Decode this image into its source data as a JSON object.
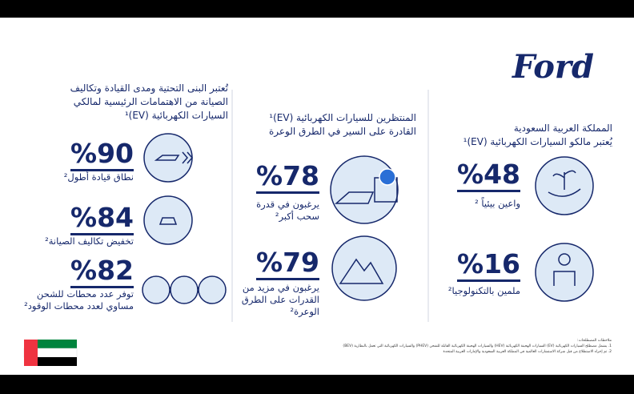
{
  "header": {
    "logo": "Ford"
  },
  "columns": [
    {
      "title": [
        "المملكة العربية السعودية",
        "يُعتبر مالكو السيارات الكهربائية (EV)¹"
      ],
      "stats": [
        {
          "value": "%48",
          "label": [
            "واعين بيئياً ²"
          ]
        },
        {
          "value": "%16",
          "label": [
            "ملمين بالتكنولوجيا²"
          ]
        }
      ]
    },
    {
      "title": [
        "المنتظرين للسيارات الكهربائية (EV)¹",
        "القادرة على السير في الطرق الوعرة"
      ],
      "stats": [
        {
          "value": "%78",
          "label": [
            "يرغبون في قدرة",
            "سحب أكبر²"
          ]
        },
        {
          "value": "%79",
          "label": [
            "يرغبون في مزيد من",
            "القدرات على الطرق",
            "الوعرة²"
          ]
        }
      ]
    },
    {
      "title": [
        "تُعتبر البنى التحتية ومدى القيادة وتكاليف",
        "الصيانة من الاهتمامات الرئيسية لمالكي",
        "السيارات الكهربائية (EV)¹"
      ],
      "stats": [
        {
          "value": "%90",
          "label": [
            "نطاق قيادة أطول²"
          ]
        },
        {
          "value": "%84",
          "label": [
            "تخفيض تكاليف الصيانة²"
          ]
        },
        {
          "value": "%82",
          "label": [
            "توفر عدد محطات للشحن",
            "مساوي لعدد محطات الوقود²"
          ]
        }
      ]
    }
  ],
  "footnotes": [
    "ملاحظات المصطلحات:",
    "1. يشمل مصطلح السيارات الكهربائية (EV) السيارات الهجينة الكهربائية (HEV) والسيارات الهجينة الكهربائية القابلة للشحن (PHEV) والسيارات الكهربائية التي تعمل بالبطارية (BEV)",
    "2. تم إجراء الاستطلاع من قبل شركة الاستشارات العالمية في المملكة العربية السعودية والإمارات العربية المتحدة"
  ]
}
